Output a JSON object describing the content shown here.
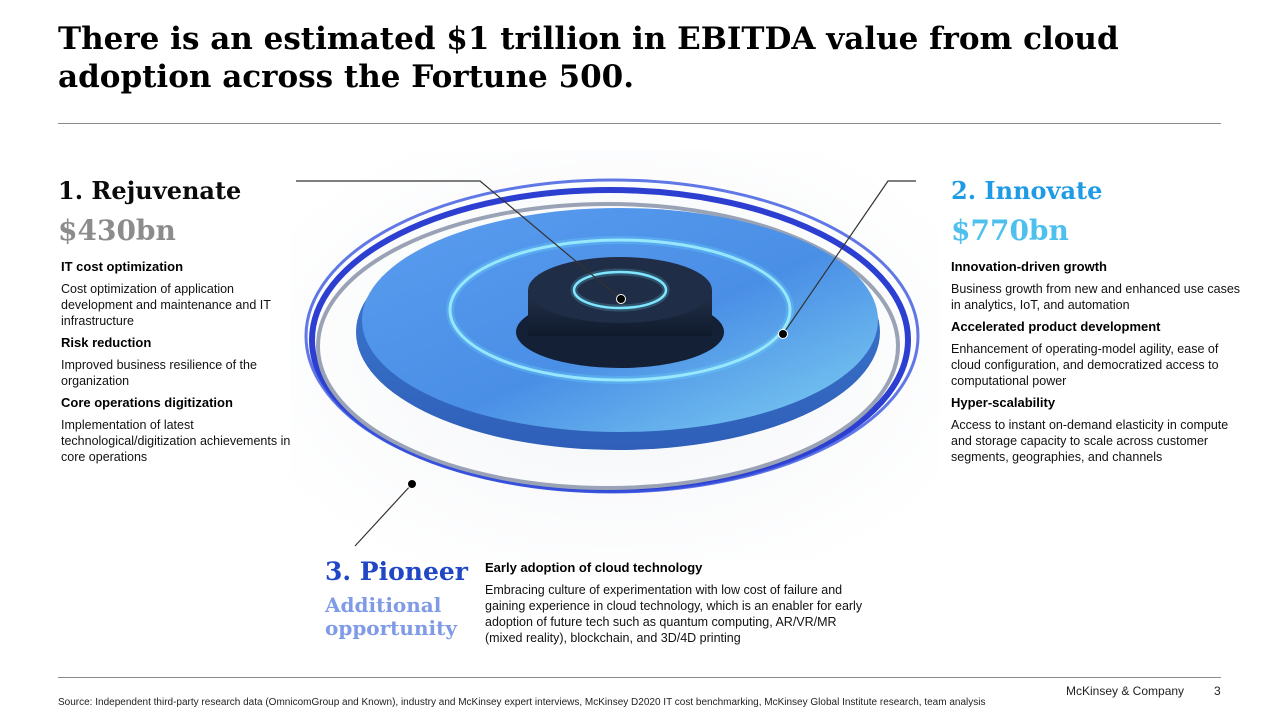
{
  "page": {
    "title": "There is an estimated $1 trillion in EBITDA value from cloud adoption across the Fortune 500."
  },
  "rejuvenate": {
    "title": "1. Rejuvenate",
    "value": "$430bn",
    "items": [
      {
        "title": "IT cost optimization",
        "desc": "Cost optimization of application development and maintenance and IT infrastructure"
      },
      {
        "title": "Risk reduction",
        "desc": "Improved business resilience of the organization"
      },
      {
        "title": "Core operations digitization",
        "desc": "Implementation of latest technological/digitization achievements in core operations"
      }
    ]
  },
  "innovate": {
    "title": "2. Innovate",
    "value": "$770bn",
    "items": [
      {
        "title": "Innovation-driven growth",
        "desc": "Business growth from new and enhanced use cases in analytics, IoT, and automation"
      },
      {
        "title": "Accelerated product development",
        "desc": "Enhancement of operating-model agility, ease of cloud configuration, and democratized access to computational power"
      },
      {
        "title": "Hyper-scalability",
        "desc": "Access to instant on-demand elasticity in compute and storage capacity to scale across customer segments, geographies, and channels"
      }
    ]
  },
  "pioneer": {
    "title": "3. Pioneer",
    "subtitle": "Additional opportunity",
    "item": {
      "title": "Early adoption of cloud technology",
      "desc": "Embracing culture of experimentation with low cost of failure and gaining experience in cloud technology, which is an enabler for early adoption of future tech such as quantum computing, AR/VR/MR (mixed reality), blockchain, and 3D/4D printing"
    }
  },
  "footer": {
    "source": "Source: Independent third-party research data (OmnicomGroup and Known), industry and McKinsey expert interviews, McKinsey D2020 IT cost benchmarking, McKinsey Global Institute research, team analysis",
    "brand": "McKinsey & Company",
    "page_number": "3"
  },
  "colors": {
    "innovate_accent": "#1f9be6",
    "innovate_value": "#4ec0ee",
    "pioneer_accent": "#2147c7",
    "pioneer_sub": "#7f9ae6",
    "rejuvenate_value": "#8c8c8c"
  }
}
